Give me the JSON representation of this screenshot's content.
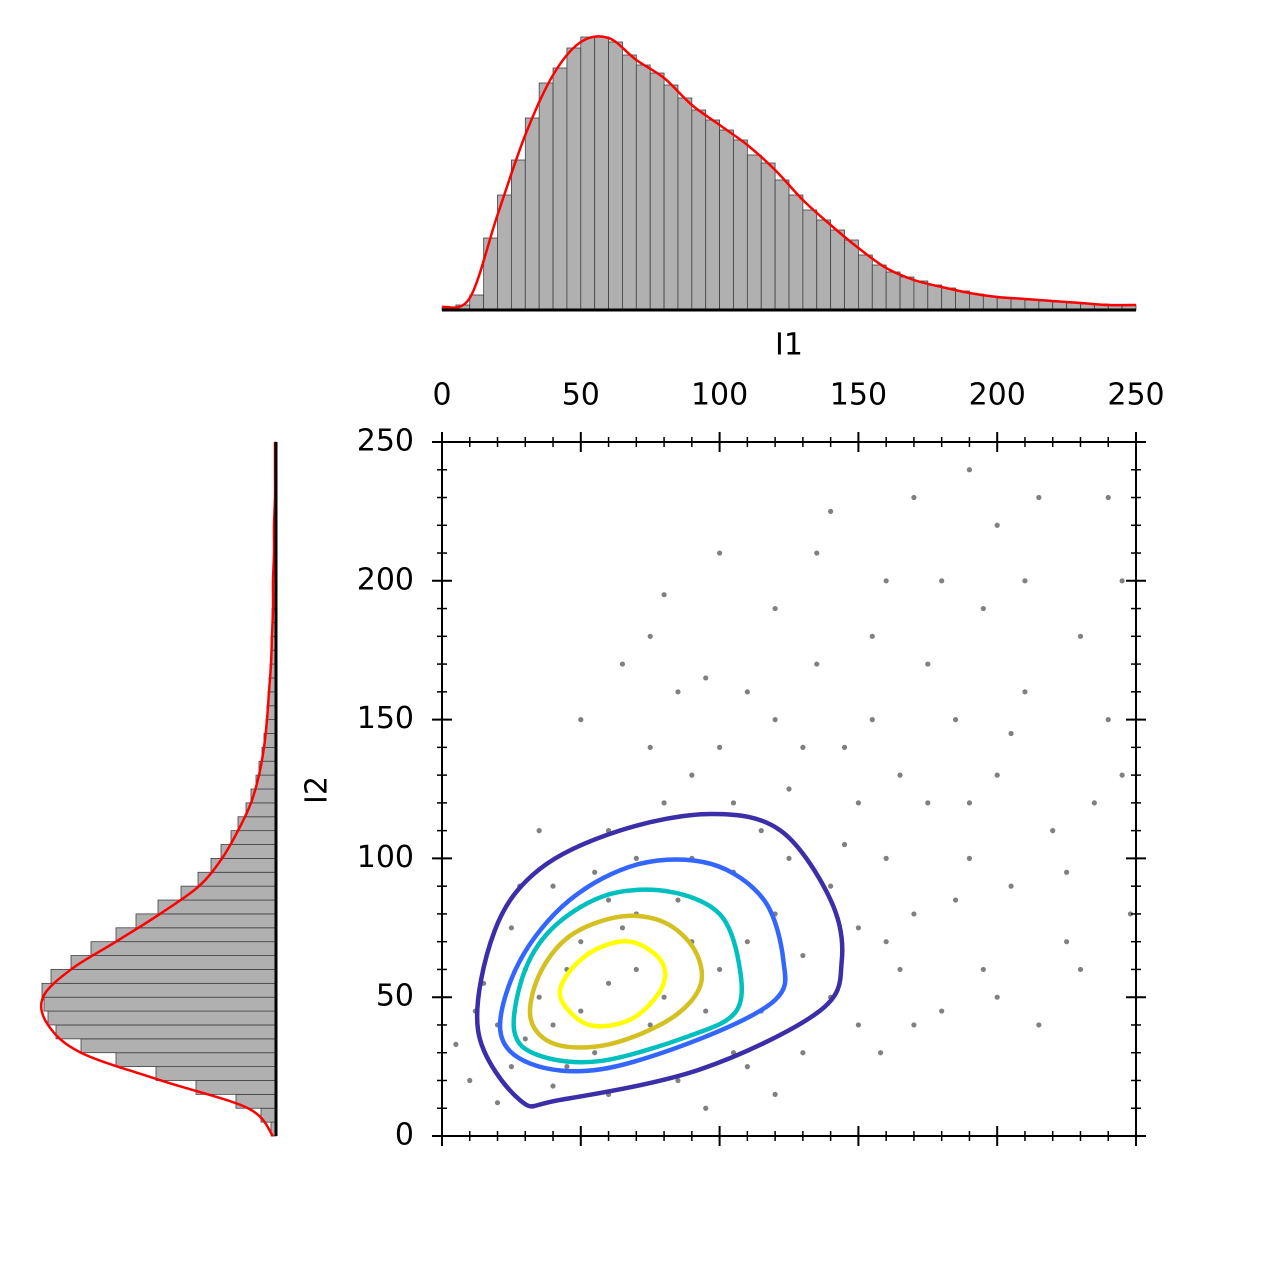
{
  "chart_data": [
    {
      "type": "scatter",
      "x_label": "I1",
      "y_label": "I2",
      "xlim": [
        0,
        250
      ],
      "ylim": [
        0,
        250
      ],
      "xticks": [
        0,
        50,
        100,
        150,
        200,
        250
      ],
      "yticks": [
        0,
        50,
        100,
        150,
        200,
        250
      ],
      "xticks_minor": [
        0,
        10,
        20,
        30,
        40,
        50,
        60,
        70,
        80,
        90,
        100,
        110,
        120,
        130,
        140,
        150,
        160,
        170,
        180,
        190,
        200,
        210,
        220,
        230,
        240,
        250
      ],
      "yticks_minor": [
        0,
        10,
        20,
        30,
        40,
        50,
        60,
        70,
        80,
        90,
        100,
        110,
        120,
        130,
        140,
        150,
        160,
        170,
        180,
        190,
        200,
        210,
        220,
        230,
        240,
        250
      ],
      "color": "#808080",
      "x": [
        60,
        50,
        70,
        80,
        40,
        90,
        55,
        65,
        100,
        75,
        45,
        85,
        110,
        35,
        95,
        120,
        60,
        30,
        105,
        130,
        70,
        50,
        140,
        115,
        25,
        80,
        150,
        90,
        125,
        160,
        20,
        100,
        145,
        170,
        60,
        40,
        110,
        135,
        175,
        185,
        165,
        155,
        190,
        200,
        120,
        95,
        75,
        210,
        180,
        220,
        230,
        200,
        240,
        215,
        245,
        170,
        135,
        225,
        195,
        180,
        150,
        130,
        110,
        85,
        60,
        40,
        20,
        10,
        15,
        25,
        35,
        50,
        65,
        80,
        100,
        140,
        160,
        205,
        235,
        248,
        240,
        190,
        160,
        150,
        125,
        140,
        105,
        115,
        90,
        70,
        55,
        45,
        30,
        200,
        215,
        230,
        175,
        195,
        155,
        120,
        85,
        105,
        165,
        185,
        130,
        145,
        210,
        245,
        225,
        205,
        190,
        170,
        158,
        120,
        95,
        5,
        12,
        28,
        75
      ],
      "y": [
        55,
        45,
        60,
        50,
        40,
        70,
        30,
        75,
        60,
        40,
        60,
        85,
        70,
        50,
        45,
        80,
        85,
        35,
        95,
        65,
        100,
        70,
        90,
        110,
        25,
        120,
        75,
        130,
        125,
        100,
        40,
        140,
        140,
        80,
        110,
        90,
        160,
        170,
        120,
        150,
        60,
        180,
        100,
        130,
        190,
        165,
        140,
        160,
        200,
        110,
        180,
        220,
        150,
        230,
        200,
        230,
        210,
        70,
        60,
        45,
        40,
        30,
        25,
        20,
        15,
        18,
        12,
        20,
        55,
        75,
        110,
        150,
        170,
        195,
        210,
        225,
        200,
        90,
        120,
        80,
        230,
        240,
        70,
        120,
        100,
        50,
        30,
        45,
        100,
        80,
        95,
        25,
        60,
        50,
        40,
        60,
        170,
        190,
        150,
        150,
        160,
        120,
        130,
        85,
        140,
        105,
        200,
        130,
        95,
        145,
        120,
        40,
        30,
        15,
        10,
        33,
        45,
        90,
        180
      ],
      "contours": [
        {
          "color": "#3a2fa8",
          "x": [
            13,
            28,
            42.5,
            93,
            136,
            144,
            140,
            122,
            97,
            64,
            35,
            19
          ],
          "y": [
            38,
            13,
            13,
            24,
            45,
            63,
            85,
            110,
            116,
            110,
            96,
            74
          ]
        },
        {
          "color": "#3366ff",
          "x": [
            21,
            32,
            57,
            93,
            120,
            123,
            116,
            97,
            71,
            46,
            28
          ],
          "y": [
            38,
            26,
            24,
            35,
            49,
            63,
            85,
            98,
            98,
            85,
            63
          ]
        },
        {
          "color": "#00bfbf",
          "x": [
            26,
            35,
            57,
            89,
            106,
            107,
            100,
            82,
            60,
            41,
            30
          ],
          "y": [
            38,
            29,
            27,
            36,
            45,
            62,
            80,
            88,
            87,
            76,
            60
          ]
        },
        {
          "color": "#d4c020",
          "x": [
            32,
            41,
            60,
            82,
            93,
            91,
            80,
            64,
            46,
            35
          ],
          "y": [
            42,
            33,
            33,
            42,
            54,
            67,
            77,
            79,
            72,
            58
          ]
        },
        {
          "color": "#ffff00",
          "x": [
            43,
            53,
            68,
            79,
            79,
            68,
            55,
            45
          ],
          "y": [
            49,
            40,
            42,
            53,
            63,
            70,
            67,
            58
          ]
        }
      ]
    },
    {
      "type": "histogram",
      "orientation": "vertical",
      "xlim": [
        0,
        250
      ],
      "ylim": [
        0,
        280
      ],
      "color": "#b0b0b0",
      "edgecolor": "#404040",
      "bins": [
        0,
        5,
        10,
        15,
        20,
        25,
        30,
        35,
        40,
        45,
        50,
        55,
        60,
        65,
        70,
        75,
        80,
        85,
        90,
        95,
        100,
        105,
        110,
        115,
        120,
        125,
        130,
        135,
        140,
        145,
        150,
        155,
        160,
        165,
        170,
        175,
        180,
        185,
        190,
        195,
        200,
        205,
        210,
        215,
        220,
        225,
        230,
        235,
        240,
        245,
        250
      ],
      "values": [
        2,
        5,
        15,
        72,
        115,
        150,
        192,
        227,
        242,
        262,
        273,
        273,
        268,
        255,
        245,
        237,
        225,
        212,
        200,
        190,
        180,
        170,
        155,
        147,
        130,
        115,
        100,
        90,
        80,
        70,
        55,
        45,
        38,
        33,
        29,
        25,
        22,
        19,
        16,
        14,
        12,
        11,
        10,
        9,
        8,
        7,
        6,
        6,
        5,
        5
      ],
      "kde": {
        "color": "#ff0000",
        "x": [
          0,
          10,
          20,
          30,
          40,
          50,
          60,
          70,
          80,
          90,
          100,
          110,
          120,
          130,
          140,
          150,
          160,
          170,
          180,
          190,
          200,
          210,
          220,
          230,
          240,
          250
        ],
        "values": [
          3,
          12,
          95,
          175,
          235,
          268,
          272,
          250,
          232,
          205,
          185,
          165,
          140,
          110,
          85,
          62,
          42,
          30,
          23,
          17,
          13,
          11,
          9,
          7,
          5,
          5
        ]
      }
    },
    {
      "type": "histogram",
      "orientation": "horizontal",
      "xlim": [
        0,
        240
      ],
      "ylim": [
        0,
        250
      ],
      "color": "#b0b0b0",
      "edgecolor": "#404040",
      "bins": [
        0,
        5,
        10,
        15,
        20,
        25,
        30,
        35,
        40,
        45,
        50,
        55,
        60,
        65,
        70,
        75,
        80,
        85,
        90,
        95,
        100,
        105,
        110,
        115,
        120,
        125,
        130,
        135,
        140,
        145,
        150,
        155,
        160,
        165,
        170,
        175,
        180,
        185,
        190,
        195,
        200,
        205,
        210,
        215,
        220,
        225,
        230,
        235,
        240,
        245,
        250
      ],
      "values": [
        5,
        15,
        40,
        80,
        120,
        160,
        195,
        220,
        228,
        232,
        234,
        225,
        205,
        185,
        160,
        140,
        118,
        95,
        78,
        65,
        55,
        45,
        38,
        30,
        25,
        20,
        17,
        14,
        12,
        10,
        9,
        8,
        7,
        6,
        5,
        5,
        4,
        4,
        3,
        3,
        3,
        2,
        2,
        2,
        2,
        1,
        1,
        1,
        1,
        1
      ],
      "kde": {
        "color": "#ff0000",
        "x": [
          0,
          10,
          20,
          30,
          40,
          50,
          60,
          70,
          80,
          90,
          100,
          110,
          120,
          130,
          140,
          150,
          160,
          170,
          180,
          190,
          200,
          210,
          220,
          230,
          240,
          250
        ],
        "values": [
          3,
          28,
          115,
          195,
          228,
          233,
          205,
          160,
          116,
          77,
          54,
          38,
          25,
          17,
          12,
          9,
          7,
          5,
          4,
          3,
          3,
          2,
          2,
          1,
          1,
          1
        ]
      }
    }
  ]
}
